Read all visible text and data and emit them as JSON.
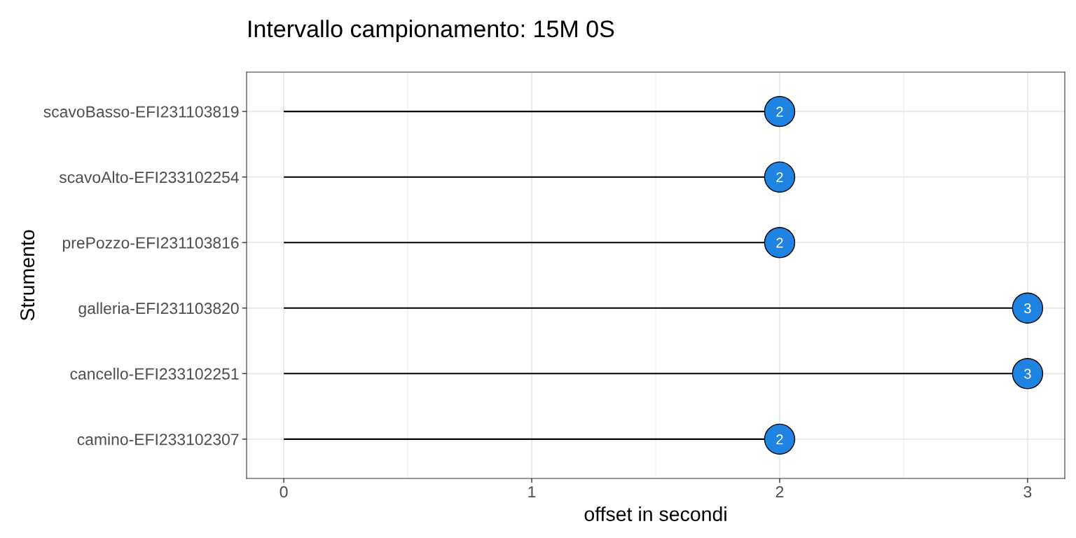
{
  "chart_data": {
    "type": "lollipop",
    "orientation": "horizontal",
    "title": "Intervallo campionamento: 15M 0S",
    "xlabel": "offset in secondi",
    "ylabel": "Strumento",
    "categories": [
      "scavoBasso-EFI231103819",
      "scavoAlto-EFI233102254",
      "prePozzo-EFI231103816",
      "galleria-EFI231103820",
      "cancello-EFI233102251",
      "camino-EFI233102307"
    ],
    "values": [
      2,
      2,
      2,
      3,
      3,
      2
    ],
    "color": "#1f83e1",
    "xlim": [
      -0.15,
      3.15
    ],
    "xticks": [
      0,
      1,
      2,
      3
    ],
    "data_labels": true,
    "marker": "circle",
    "grid": true
  }
}
